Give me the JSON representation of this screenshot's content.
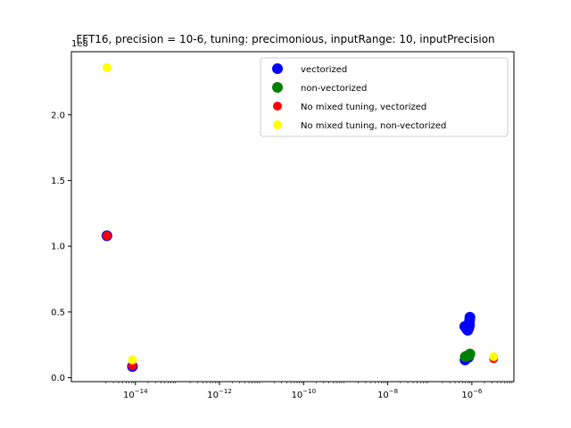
{
  "chart_data": {
    "type": "scatter",
    "title": "FFT16, precision = 10-6, tuning: precimonious, inputRange: 10, inputPrecision",
    "xscale": "log",
    "xlim": [
      3e-16,
      1e-05
    ],
    "ylim": [
      -3000000.0,
      248000000.0
    ],
    "y_offset_label": "1e8",
    "x_ticks": [
      {
        "value": 1e-14,
        "base": "10",
        "exp": "−14"
      },
      {
        "value": 1e-12,
        "base": "10",
        "exp": "−12"
      },
      {
        "value": 1e-10,
        "base": "10",
        "exp": "−10"
      },
      {
        "value": 1e-08,
        "base": "10",
        "exp": "−8"
      },
      {
        "value": 1e-06,
        "base": "10",
        "exp": "−6"
      }
    ],
    "y_ticks": [
      {
        "value": 0.0,
        "label": "0.0"
      },
      {
        "value": 50000000.0,
        "label": "0.5"
      },
      {
        "value": 100000000.0,
        "label": "1.0"
      },
      {
        "value": 150000000.0,
        "label": "1.5"
      },
      {
        "value": 200000000.0,
        "label": "2.0"
      }
    ],
    "legend_position": "top-right",
    "grid": false,
    "series": [
      {
        "name": "vectorized",
        "color": "#0000ff",
        "marker_size": 6,
        "points": [
          [
            2.1e-15,
            108000000.0
          ],
          [
            8.5e-15,
            8500000.0
          ],
          [
            6.8e-07,
            39000000.0
          ],
          [
            7.5e-07,
            37000000.0
          ],
          [
            8e-07,
            36000000.0
          ],
          [
            8.5e-07,
            38000000.0
          ],
          [
            8.7e-07,
            42000000.0
          ],
          [
            8.9e-07,
            44000000.0
          ],
          [
            9e-07,
            46000000.0
          ],
          [
            8.8e-07,
            40000000.0
          ],
          [
            6.9e-07,
            13500000.0
          ],
          [
            7.4e-07,
            15000000.0
          ],
          [
            8.3e-07,
            15500000.0
          ]
        ]
      },
      {
        "name": "non-vectorized",
        "color": "#008000",
        "marker_size": 6,
        "points": [
          [
            7e-07,
            16000000.0
          ],
          [
            7.6e-07,
            16500000.0
          ],
          [
            8.4e-07,
            17000000.0
          ],
          [
            9e-07,
            18000000.0
          ]
        ]
      },
      {
        "name": "No mixed tuning, vectorized",
        "color": "#ff0000",
        "marker_size": 5,
        "points": [
          [
            2.1e-15,
            108000000.0
          ],
          [
            8.5e-15,
            9000000.0
          ],
          [
            3.3e-06,
            14500000.0
          ]
        ]
      },
      {
        "name": "No mixed tuning, non-vectorized",
        "color": "#ffff00",
        "marker_size": 5,
        "points": [
          [
            2.1e-15,
            236000000.0
          ],
          [
            8.5e-15,
            13500000.0
          ],
          [
            3.3e-06,
            16000000.0
          ]
        ]
      }
    ]
  }
}
